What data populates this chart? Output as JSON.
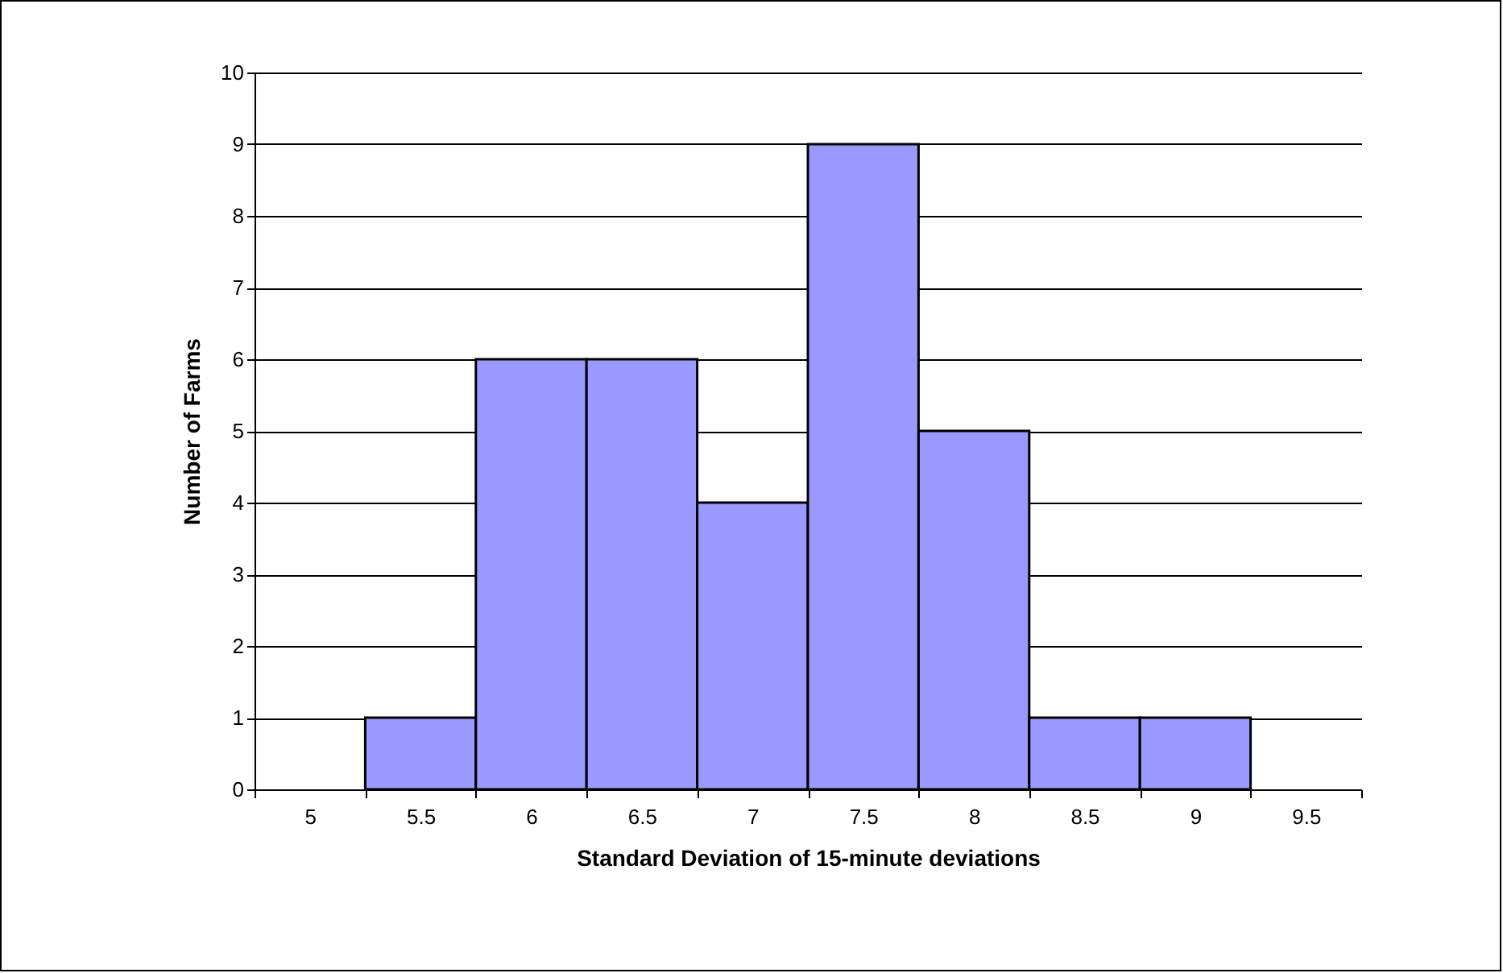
{
  "chart_data": {
    "type": "bar",
    "xlabel": "Standard Deviation of 15-minute deviations",
    "ylabel": "Number of Farms",
    "categories": [
      "5",
      "5.5",
      "6",
      "6.5",
      "7",
      "7.5",
      "8",
      "8.5",
      "9",
      "9.5"
    ],
    "values": [
      0,
      1,
      6,
      6,
      4,
      9,
      5,
      1,
      1,
      0
    ],
    "color": "#9999ff",
    "ylim": [
      0,
      10
    ],
    "yticks": [
      0,
      1,
      2,
      3,
      4,
      5,
      6,
      7,
      8,
      9,
      10
    ],
    "grid": "y"
  }
}
